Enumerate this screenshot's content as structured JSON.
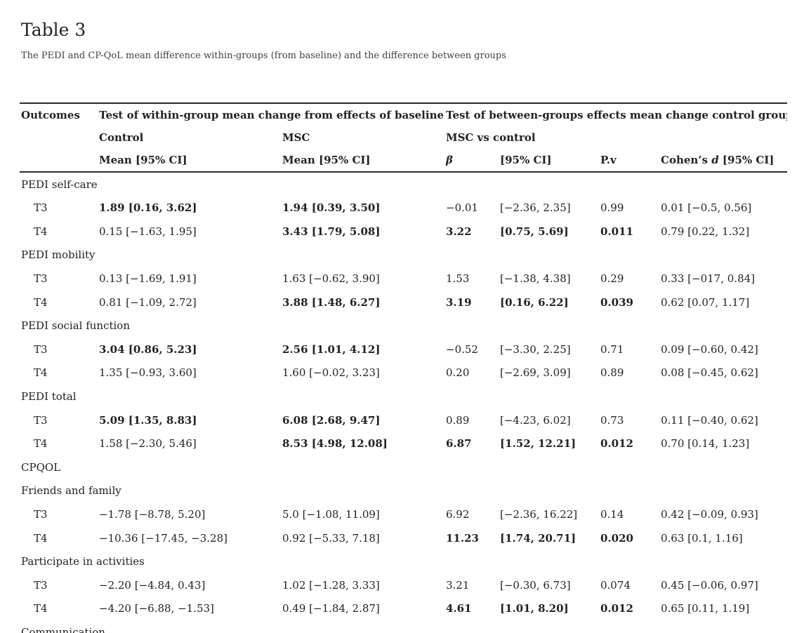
{
  "page": {
    "title": "Table 3",
    "caption": "The PEDI and CP-QoL mean difference within-groups (from baseline) and the difference between groups"
  },
  "table": {
    "header": {
      "outcomes": "Outcomes",
      "within_group": "Test of within-group mean change from effects of baseline",
      "between_groups": "Test of between-groups effects mean change control group",
      "control": "Control",
      "msc": "MSC",
      "msc_vs_control": "MSC vs control",
      "control_mean_ci": "Mean [95% CI]",
      "msc_mean_ci": "Mean [95% CI]",
      "beta": "β",
      "ci": "[95% CI]",
      "pv": "P.v",
      "cohens_prefix": "Cohen’s ",
      "cohens_d": "d",
      "cohens_suffix": " [95% CI]"
    },
    "sections": [
      {
        "label": "PEDI self-care",
        "rows": [
          {
            "label": "T3",
            "cells": [
              {
                "t": "1.89 [0.16, 3.62]",
                "b": true
              },
              {
                "t": "1.94 [0.39, 3.50]",
                "b": true
              },
              {
                "t": "−0.01",
                "b": false
              },
              {
                "t": "[−2.36, 2.35]",
                "b": false
              },
              {
                "t": "0.99",
                "b": false
              },
              {
                "t": "0.01 [−0.5, 0.56]",
                "b": false
              }
            ]
          },
          {
            "label": "T4",
            "cells": [
              {
                "t": "0.15 [−1.63, 1.95]",
                "b": false
              },
              {
                "t": "3.43 [1.79, 5.08]",
                "b": true
              },
              {
                "t": "3.22",
                "b": true
              },
              {
                "t": "[0.75, 5.69]",
                "b": true
              },
              {
                "t": "0.011",
                "b": true
              },
              {
                "t": "0.79 [0.22, 1.32]",
                "b": false
              }
            ]
          }
        ]
      },
      {
        "label": "PEDI mobility",
        "rows": [
          {
            "label": "T3",
            "cells": [
              {
                "t": "0.13 [−1.69, 1.91]",
                "b": false
              },
              {
                "t": "1.63 [−0.62, 3.90]",
                "b": false
              },
              {
                "t": "1.53",
                "b": false
              },
              {
                "t": "[−1.38, 4.38]",
                "b": false
              },
              {
                "t": "0.29",
                "b": false
              },
              {
                "t": "0.33 [−017, 0.84]",
                "b": false
              }
            ]
          },
          {
            "label": "T4",
            "cells": [
              {
                "t": "0.81 [−1.09, 2.72]",
                "b": false
              },
              {
                "t": "3.88 [1.48, 6.27]",
                "b": true
              },
              {
                "t": "3.19",
                "b": true
              },
              {
                "t": "[0.16, 6.22]",
                "b": true
              },
              {
                "t": "0.039",
                "b": true
              },
              {
                "t": "0.62 [0.07, 1.17]",
                "b": false
              }
            ]
          }
        ]
      },
      {
        "label": "PEDI social function",
        "rows": [
          {
            "label": "T3",
            "cells": [
              {
                "t": "3.04 [0.86, 5.23]",
                "b": true
              },
              {
                "t": "2.56 [1.01, 4.12]",
                "b": true
              },
              {
                "t": "−0.52",
                "b": false
              },
              {
                "t": "[−3.30, 2.25]",
                "b": false
              },
              {
                "t": "0.71",
                "b": false
              },
              {
                "t": "0.09 [−0.60, 0.42]",
                "b": false
              }
            ]
          },
          {
            "label": "T4",
            "cells": [
              {
                "t": "1.35 [−0.93, 3.60]",
                "b": false
              },
              {
                "t": "1.60 [−0.02, 3.23]",
                "b": false
              },
              {
                "t": "0.20",
                "b": false
              },
              {
                "t": "[−2.69, 3.09]",
                "b": false
              },
              {
                "t": "0.89",
                "b": false
              },
              {
                "t": "0.08 [−0.45, 0.62]",
                "b": false
              }
            ]
          }
        ]
      },
      {
        "label": "PEDI total",
        "rows": [
          {
            "label": "T3",
            "cells": [
              {
                "t": "5.09 [1.35, 8.83]",
                "b": true
              },
              {
                "t": "6.08 [2.68, 9.47]",
                "b": true
              },
              {
                "t": "0.89",
                "b": false
              },
              {
                "t": "[−4.23, 6.02]",
                "b": false
              },
              {
                "t": "0.73",
                "b": false
              },
              {
                "t": "0.11 [−0.40, 0.62]",
                "b": false
              }
            ]
          },
          {
            "label": "T4",
            "cells": [
              {
                "t": "1.58 [−2.30, 5.46]",
                "b": false
              },
              {
                "t": "8.53 [4.98, 12.08]",
                "b": true
              },
              {
                "t": "6.87",
                "b": true
              },
              {
                "t": "[1.52, 12.21]",
                "b": true
              },
              {
                "t": "0.012",
                "b": true
              },
              {
                "t": "0.70 [0.14, 1.23]",
                "b": false
              }
            ]
          }
        ]
      },
      {
        "label": "CPQOL",
        "rows": []
      },
      {
        "label": "Friends and family",
        "rows": [
          {
            "label": "T3",
            "cells": [
              {
                "t": "−1.78 [−8.78, 5.20]",
                "b": false
              },
              {
                "t": "5.0 [−1.08, 11.09]",
                "b": false
              },
              {
                "t": "6.92",
                "b": false
              },
              {
                "t": "[−2.36, 16.22]",
                "b": false
              },
              {
                "t": "0.14",
                "b": false
              },
              {
                "t": "0.42 [−0.09, 0.93]",
                "b": false
              }
            ]
          },
          {
            "label": "T4",
            "cells": [
              {
                "t": "−10.36 [−17.45, −3.28]",
                "b": false
              },
              {
                "t": "0.92 [−5.33, 7.18]",
                "b": false
              },
              {
                "t": "11.23",
                "b": true
              },
              {
                "t": "[1.74, 20.71]",
                "b": true
              },
              {
                "t": "0.020",
                "b": true
              },
              {
                "t": "0.63 [0.1, 1.16]",
                "b": false
              }
            ]
          }
        ]
      },
      {
        "label": "Participate in activities",
        "rows": [
          {
            "label": "T3",
            "cells": [
              {
                "t": "−2.20 [−4.84, 0.43]",
                "b": false
              },
              {
                "t": "1.02 [−1.28, 3.33]",
                "b": false
              },
              {
                "t": "3.21",
                "b": false
              },
              {
                "t": "[−0.30, 6.73]",
                "b": false
              },
              {
                "t": "0.074",
                "b": false
              },
              {
                "t": "0.45 [−0.06, 0.97]",
                "b": false
              }
            ]
          },
          {
            "label": "T4",
            "cells": [
              {
                "t": "−4.20 [−6.88, −1.53]",
                "b": false
              },
              {
                "t": "0.49 [−1.84, 2.87]",
                "b": false
              },
              {
                "t": "4.61",
                "b": true
              },
              {
                "t": "[1.01, 8.20]",
                "b": true
              },
              {
                "t": "0.012",
                "b": true
              },
              {
                "t": "0.65 [0.11, 1.19]",
                "b": false
              }
            ]
          }
        ]
      },
      {
        "label": "Communication",
        "rows": []
      }
    ]
  }
}
